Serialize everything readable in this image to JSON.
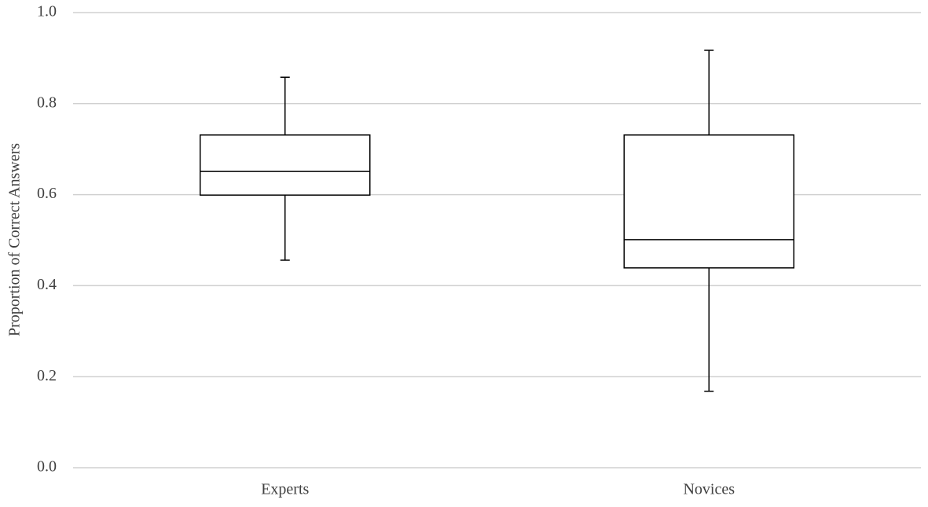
{
  "chart_data": {
    "type": "box",
    "y_label": "Proportion of Correct Answers",
    "categories": [
      "Experts",
      "Novices"
    ],
    "whisker_low": [
      0.456,
      0.168
    ],
    "q1": [
      0.599,
      0.439
    ],
    "median": [
      0.651,
      0.501
    ],
    "q3": [
      0.731,
      0.731
    ],
    "whisker_high": [
      0.858,
      0.917
    ],
    "color": "#000000",
    "ylim": [
      0,
      1
    ],
    "yticks": [
      {
        "value": 0,
        "label": "0.0"
      },
      0.2,
      0.4,
      0.6,
      0.8,
      {
        "value": 1,
        "label": "1.0"
      }
    ],
    "grid": true
  }
}
